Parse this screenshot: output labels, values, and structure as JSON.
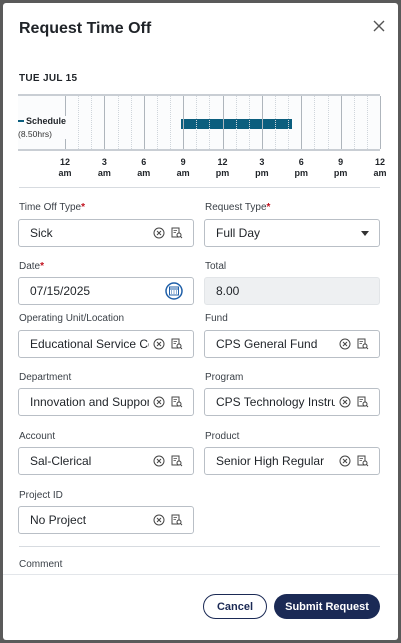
{
  "dialog": {
    "title": "Request Time Off",
    "close_icon": "close-icon"
  },
  "timeline": {
    "day_label": "TUE JUL 15",
    "row_label": "Schedule",
    "row_sub": "(8.50hrs)",
    "bar_start_hour": 8.8,
    "bar_end_hour": 17.3,
    "bar_color": "#0b5e7e",
    "ticks": [
      {
        "top": "12",
        "bottom": "am"
      },
      {
        "top": "3",
        "bottom": "am"
      },
      {
        "top": "6",
        "bottom": "am"
      },
      {
        "top": "9",
        "bottom": "am"
      },
      {
        "top": "12",
        "bottom": "pm"
      },
      {
        "top": "3",
        "bottom": "pm"
      },
      {
        "top": "6",
        "bottom": "pm"
      },
      {
        "top": "9",
        "bottom": "pm"
      },
      {
        "top": "12",
        "bottom": "am"
      }
    ]
  },
  "form": {
    "time_off_type": {
      "label": "Time Off Type",
      "value": "Sick"
    },
    "request_type": {
      "label": "Request Type",
      "value": "Full Day"
    },
    "date": {
      "label": "Date",
      "value": "07/15/2025"
    },
    "total": {
      "label": "Total",
      "value": "8.00"
    },
    "operating_unit": {
      "label": "Operating Unit/Location",
      "value": "Educational Service Center"
    },
    "fund": {
      "label": "Fund",
      "value": "CPS General Fund"
    },
    "department": {
      "label": "Department",
      "value": "Innovation and Support"
    },
    "program": {
      "label": "Program",
      "value": "CPS Technology Instruction"
    },
    "account": {
      "label": "Account",
      "value": "Sal-Clerical"
    },
    "product": {
      "label": "Product",
      "value": "Senior High Regular"
    },
    "project_id": {
      "label": "Project ID",
      "value": "No Project"
    },
    "comment": {
      "label": "Comment"
    },
    "required_mark": "*"
  },
  "actions": {
    "cancel_label": "Cancel",
    "submit_label": "Submit Request"
  },
  "colors": {
    "primary": "#1b2a55",
    "required": "#c1121f"
  }
}
